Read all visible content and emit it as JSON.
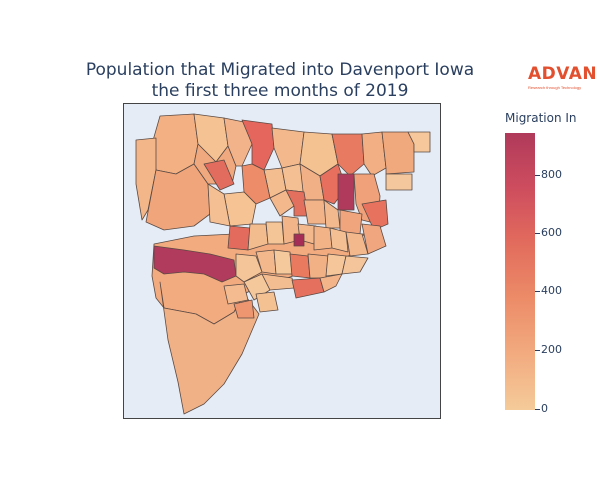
{
  "title": {
    "line1": "Population that Migrated into Davenport Iowa",
    "line2": "the first three months of 2019"
  },
  "brand": {
    "name": "ADVAN",
    "tagline": "Research through Technology",
    "color": "#e2502f"
  },
  "colorbar": {
    "title": "Migration In",
    "min": 0,
    "max": 950,
    "ticks": [
      "800",
      "600",
      "400",
      "200",
      "0"
    ],
    "colors": [
      "#b03a5b",
      "#ce4d5e",
      "#e26c5d",
      "#ec8c68",
      "#f2ab7f",
      "#f5cb9a"
    ]
  },
  "chart_data": {
    "type": "choropleth",
    "region": "Davenport, Iowa census tracts",
    "measure": "Migration In",
    "color_range": [
      0,
      950
    ],
    "background": "#e5ecf6",
    "notable_tracts": [
      {
        "area": "west river tract",
        "value": 880
      },
      {
        "area": "east tract near center",
        "value": 900
      },
      {
        "area": "small central tract",
        "value": 850
      },
      {
        "area": "north-central tract",
        "value": 600
      },
      {
        "area": "north-east tract",
        "value": 560
      },
      {
        "area": "south-west large tract",
        "value": 300
      }
    ]
  }
}
